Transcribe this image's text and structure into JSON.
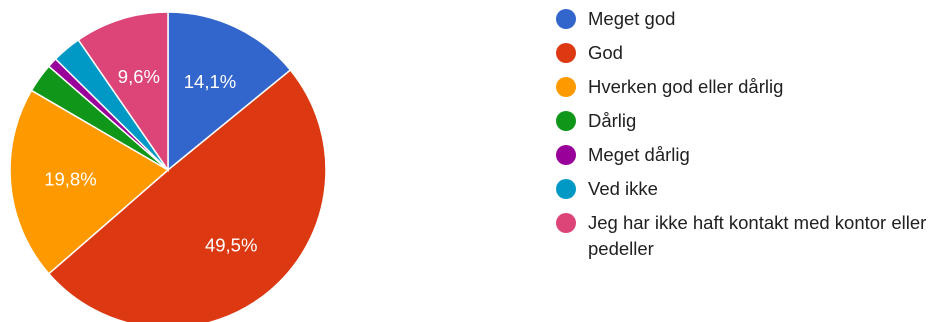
{
  "chart_data": {
    "type": "pie",
    "title": "",
    "legend_position": "right",
    "slices": [
      {
        "name": "Meget god",
        "value": 14.1,
        "label": "14,1%",
        "color": "#3366cc"
      },
      {
        "name": "God",
        "value": 49.5,
        "label": "49,5%",
        "color": "#dc3912"
      },
      {
        "name": "Hverken god eller dårlig",
        "value": 19.8,
        "label": "19,8%",
        "color": "#ff9900"
      },
      {
        "name": "Dårlig",
        "value": 3.0,
        "label": "",
        "color": "#109618"
      },
      {
        "name": "Meget dårlig",
        "value": 1.0,
        "label": "",
        "color": "#990099"
      },
      {
        "name": "Ved ikke",
        "value": 3.0,
        "label": "",
        "color": "#0099c6"
      },
      {
        "name": "Jeg har ikke haft kontakt med kontor eller pedeller",
        "value": 9.6,
        "label": "9,6%",
        "color": "#dd4477"
      }
    ]
  }
}
